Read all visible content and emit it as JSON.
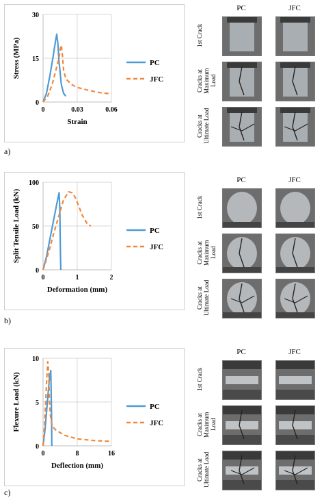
{
  "panels": [
    {
      "letter": "a)",
      "chart": {
        "type": "line",
        "xlabel": "Strain",
        "ylabel": "Stress (MPa)",
        "xlim": [
          0,
          0.06
        ],
        "ylim": [
          0,
          30
        ],
        "xticks": [
          "0",
          "0.03",
          "0.06"
        ],
        "yticks": [
          "0",
          "15",
          "30"
        ],
        "legend_position": "right",
        "series": [
          {
            "name": "PC",
            "color": "#4f9bd6",
            "dash": "solid",
            "points": [
              [
                0,
                0
              ],
              [
                0.003,
                3
              ],
              [
                0.006,
                9
              ],
              [
                0.009,
                16
              ],
              [
                0.011,
                21
              ],
              [
                0.012,
                23.2
              ],
              [
                0.013,
                20
              ],
              [
                0.014,
                14
              ],
              [
                0.016,
                6
              ],
              [
                0.018,
                3
              ],
              [
                0.02,
                2
              ]
            ]
          },
          {
            "name": "JFC",
            "color": "#f0883a",
            "dash": "dashed",
            "points": [
              [
                0,
                0
              ],
              [
                0.004,
                2
              ],
              [
                0.008,
                6
              ],
              [
                0.012,
                12
              ],
              [
                0.014,
                15
              ],
              [
                0.015,
                18
              ],
              [
                0.016,
                19.5
              ],
              [
                0.017,
                16
              ],
              [
                0.018,
                11
              ],
              [
                0.02,
                8
              ],
              [
                0.025,
                6
              ],
              [
                0.03,
                5
              ],
              [
                0.04,
                4
              ],
              [
                0.05,
                3.2
              ],
              [
                0.06,
                2.8
              ]
            ]
          }
        ]
      },
      "photos": {
        "columns": [
          "PC",
          "JFC"
        ],
        "rows": [
          "1st Crack",
          "Cracks at Maximum Load",
          "Cracks at Ultimate Load"
        ]
      }
    },
    {
      "letter": "b)",
      "chart": {
        "type": "line",
        "xlabel": "Deformation (mm)",
        "ylabel": "Split Tensile Load (kN)",
        "xlim": [
          0,
          2
        ],
        "ylim": [
          0,
          100
        ],
        "xticks": [
          "0",
          "1",
          "2"
        ],
        "yticks": [
          "0",
          "50",
          "100"
        ],
        "legend_position": "right",
        "series": [
          {
            "name": "PC",
            "color": "#4f9bd6",
            "dash": "solid",
            "points": [
              [
                0,
                0
              ],
              [
                0.1,
                15
              ],
              [
                0.2,
                35
              ],
              [
                0.3,
                55
              ],
              [
                0.4,
                75
              ],
              [
                0.47,
                88
              ],
              [
                0.49,
                70
              ],
              [
                0.5,
                40
              ],
              [
                0.51,
                15
              ],
              [
                0.52,
                0
              ]
            ]
          },
          {
            "name": "JFC",
            "color": "#f0883a",
            "dash": "dashed",
            "points": [
              [
                0,
                0
              ],
              [
                0.1,
                12
              ],
              [
                0.2,
                25
              ],
              [
                0.3,
                40
              ],
              [
                0.45,
                60
              ],
              [
                0.6,
                80
              ],
              [
                0.75,
                89
              ],
              [
                0.85,
                88
              ],
              [
                0.95,
                82
              ],
              [
                1.05,
                72
              ],
              [
                1.15,
                62
              ],
              [
                1.3,
                52
              ],
              [
                1.4,
                50
              ]
            ]
          }
        ]
      },
      "photos": {
        "columns": [
          "PC",
          "JFC"
        ],
        "rows": [
          "1st Crack",
          "Cracks at Maximum Load",
          "Cracks at Ultimate Load"
        ]
      }
    },
    {
      "letter": "c)",
      "chart": {
        "type": "line",
        "xlabel": "Deflection (mm)",
        "ylabel": "Flexure Load (kN)",
        "xlim": [
          0,
          16
        ],
        "ylim": [
          0,
          10
        ],
        "xticks": [
          "0",
          "8",
          "16"
        ],
        "yticks": [
          "0",
          "5",
          "10"
        ],
        "legend_position": "right",
        "series": [
          {
            "name": "PC",
            "color": "#4f9bd6",
            "dash": "solid",
            "points": [
              [
                0,
                0
              ],
              [
                0.5,
                2
              ],
              [
                1,
                5
              ],
              [
                1.5,
                7.8
              ],
              [
                1.8,
                8.6
              ],
              [
                1.9,
                6
              ],
              [
                2,
                3
              ],
              [
                2.05,
                0
              ]
            ]
          },
          {
            "name": "JFC",
            "color": "#f0883a",
            "dash": "dashed",
            "points": [
              [
                0,
                0
              ],
              [
                0.3,
                2
              ],
              [
                0.6,
                5
              ],
              [
                0.9,
                8
              ],
              [
                1.1,
                9.6
              ],
              [
                1.3,
                8.5
              ],
              [
                1.5,
                5
              ],
              [
                1.8,
                3
              ],
              [
                2.2,
                2.2
              ],
              [
                3,
                1.8
              ],
              [
                5,
                1.2
              ],
              [
                8,
                0.8
              ],
              [
                12,
                0.6
              ],
              [
                16,
                0.5
              ]
            ]
          }
        ]
      },
      "photos": {
        "columns": [
          "PC",
          "JFC"
        ],
        "rows": [
          "1st Crack",
          "Cracks at Maximum Load",
          "Cracks at Ultimate Load"
        ]
      }
    }
  ]
}
